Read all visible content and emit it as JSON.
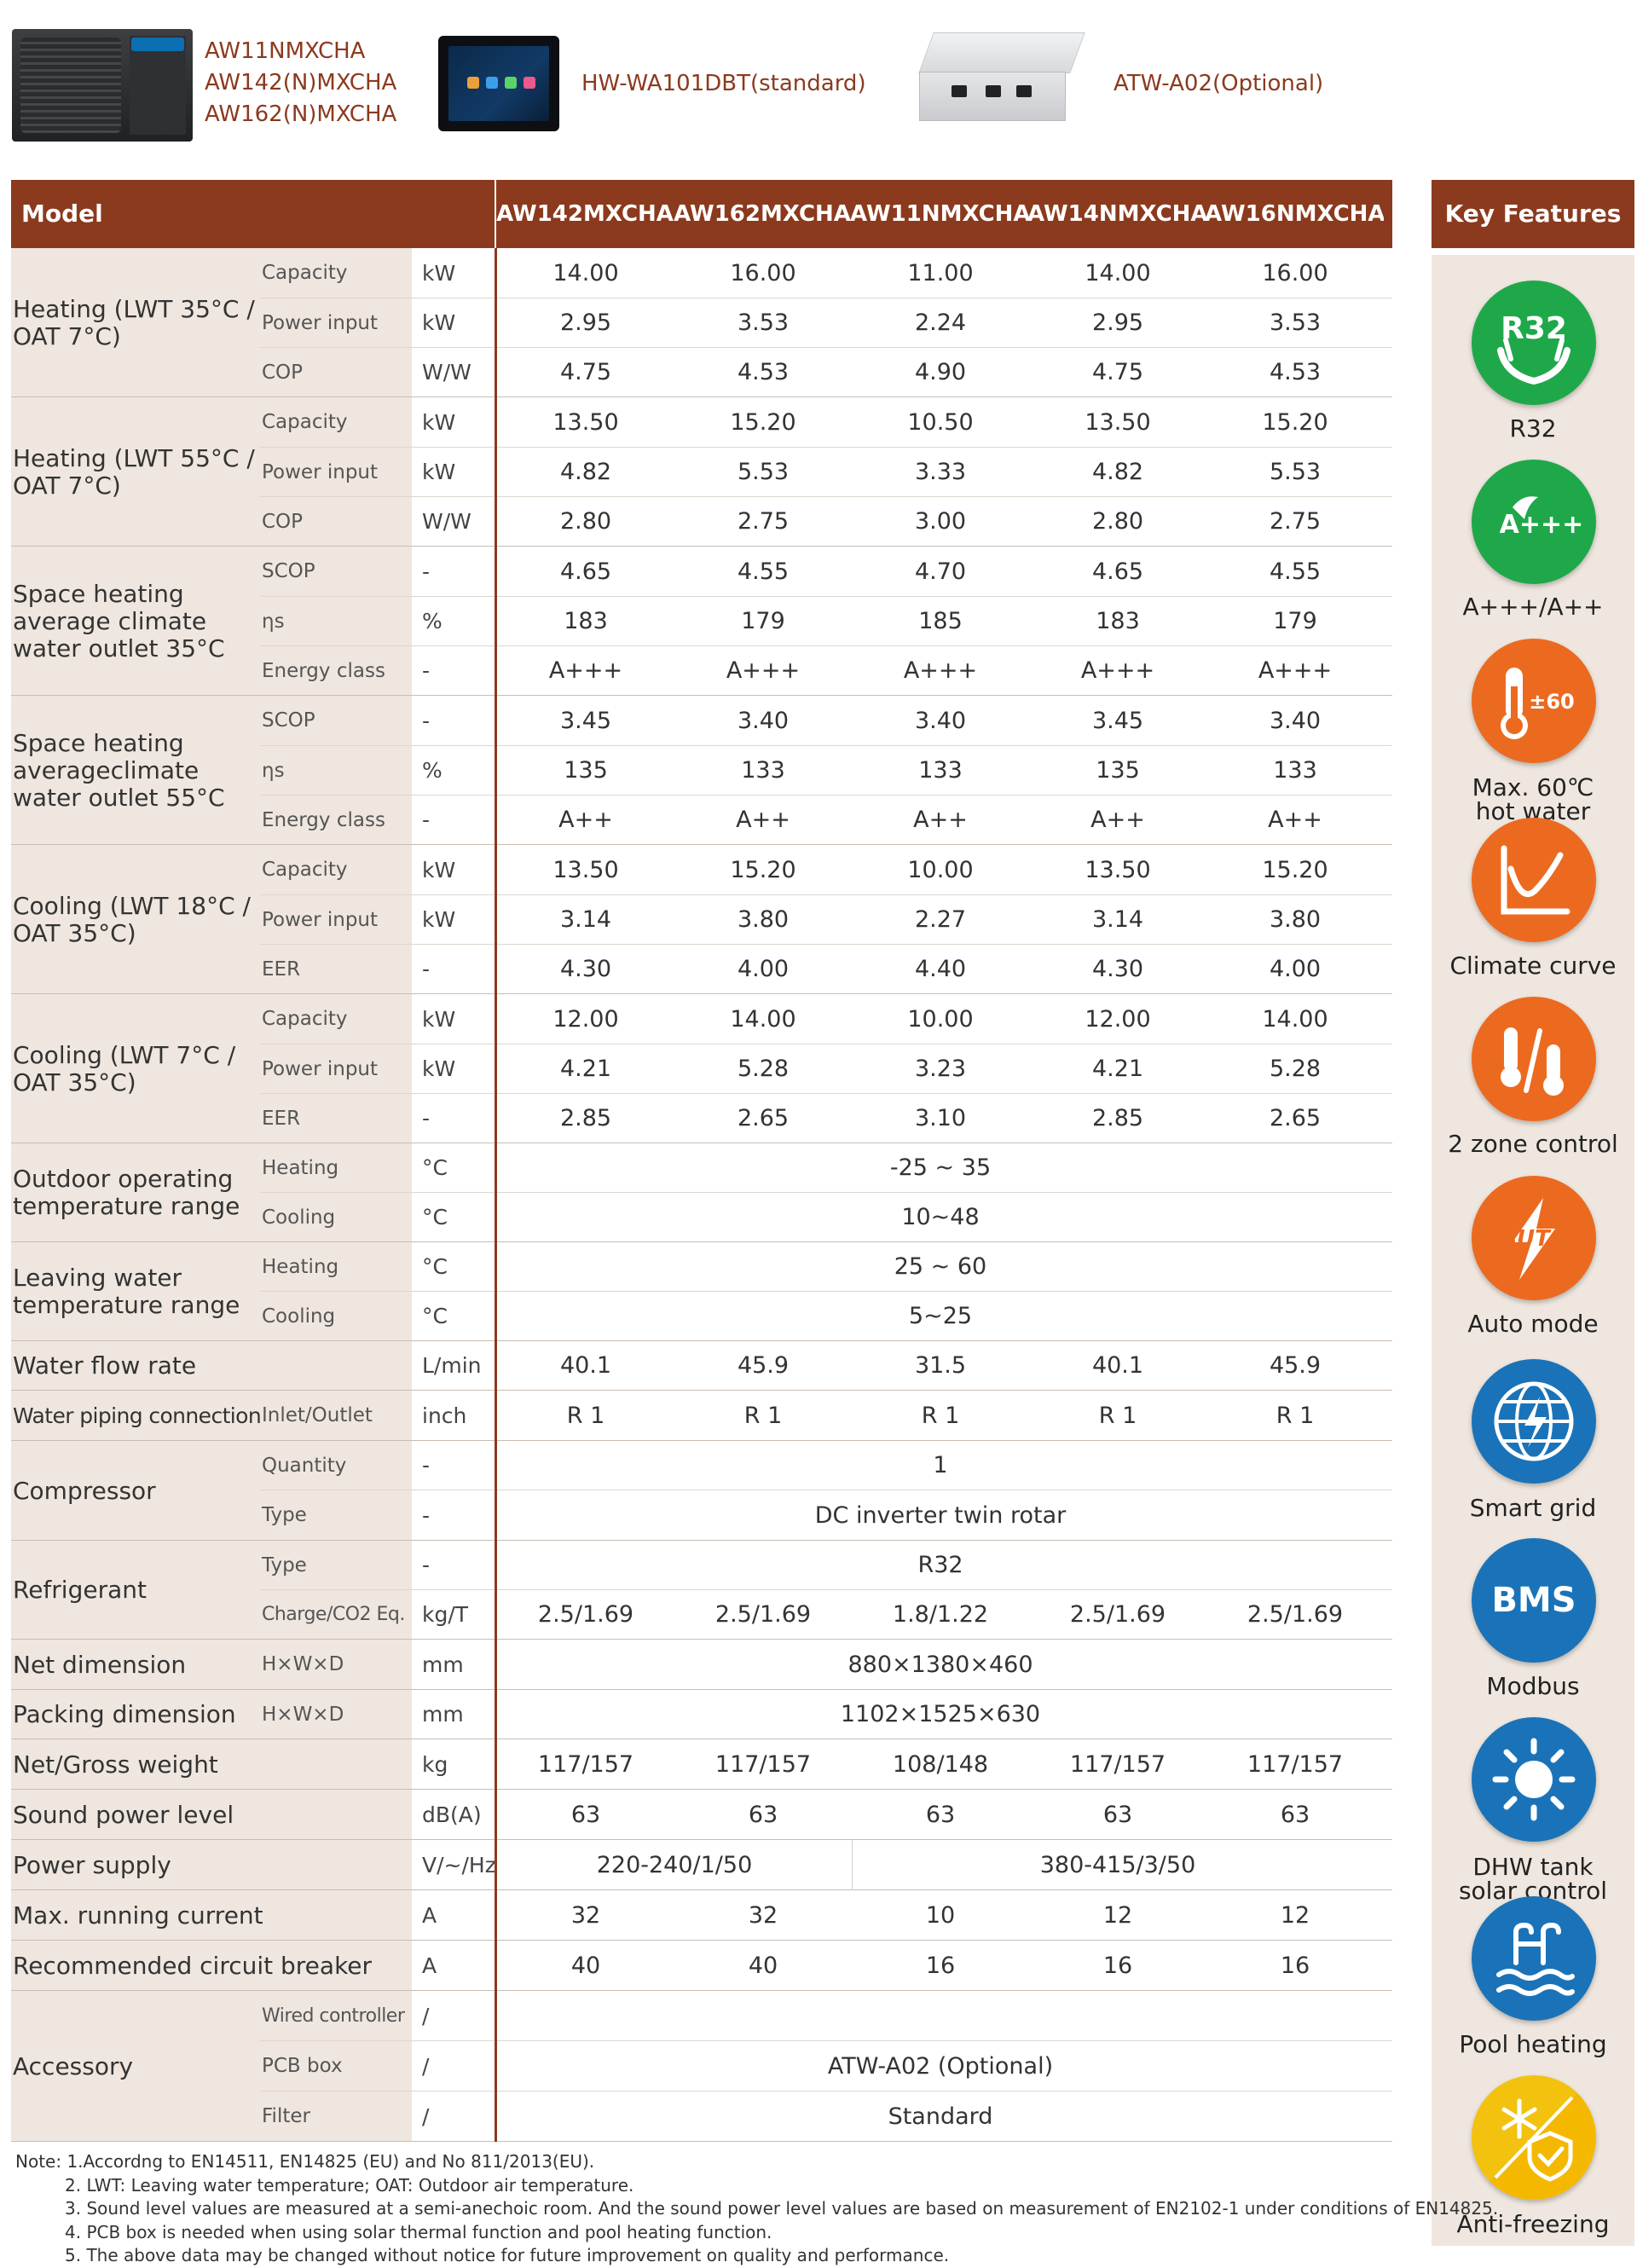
{
  "header": {
    "unit_models": [
      "AW11NMXCHA",
      "AW142(N)MXCHA",
      "AW162(N)MXCHA"
    ],
    "controller_label": "HW-WA101DBT(standard)",
    "box_label": "ATW-A02(Optional)"
  },
  "colors": {
    "accent": "#8b3a1e",
    "band": "#efe7df",
    "green": "#1fa84a",
    "orange": "#ec6a1f",
    "blue": "#1a73b8",
    "yellow": "#f2c20f"
  },
  "table": {
    "model_label": "Model",
    "models": [
      "AW142MXCHA",
      "AW162MXCHA",
      "AW11NMXCHA",
      "AW14NMXCHA",
      "AW16NMXCHA"
    ],
    "rows": [
      {
        "group": "Heating (LWT 35°C /\nOAT 7°C)",
        "sub": "Capacity",
        "unit": "kW",
        "values": [
          "14.00",
          "16.00",
          "11.00",
          "14.00",
          "16.00"
        ]
      },
      {
        "sub": "Power input",
        "unit": "kW",
        "values": [
          "2.95",
          "3.53",
          "2.24",
          "2.95",
          "3.53"
        ]
      },
      {
        "sub": "COP",
        "unit": "W/W",
        "values": [
          "4.75",
          "4.53",
          "4.90",
          "4.75",
          "4.53"
        ]
      },
      {
        "group": "Heating (LWT 55°C /\nOAT 7°C)",
        "sub": "Capacity",
        "unit": "kW",
        "values": [
          "13.50",
          "15.20",
          "10.50",
          "13.50",
          "15.20"
        ]
      },
      {
        "sub": "Power input",
        "unit": "kW",
        "values": [
          "4.82",
          "5.53",
          "3.33",
          "4.82",
          "5.53"
        ]
      },
      {
        "sub": "COP",
        "unit": "W/W",
        "values": [
          "2.80",
          "2.75",
          "3.00",
          "2.80",
          "2.75"
        ]
      },
      {
        "group": "Space heating\naverage climate\nwater outlet 35°C",
        "sub": "SCOP",
        "unit": "-",
        "values": [
          "4.65",
          "4.55",
          "4.70",
          "4.65",
          "4.55"
        ]
      },
      {
        "sub": "ηs",
        "unit": "%",
        "values": [
          "183",
          "179",
          "185",
          "183",
          "179"
        ]
      },
      {
        "sub": "Energy class",
        "unit": "-",
        "values": [
          "A+++",
          "A+++",
          "A+++",
          "A+++",
          "A+++"
        ]
      },
      {
        "group": "Space heating\naverageclimate\nwater outlet 55°C",
        "sub": "SCOP",
        "unit": "-",
        "values": [
          "3.45",
          "3.40",
          "3.40",
          "3.45",
          "3.40"
        ]
      },
      {
        "sub": "ηs",
        "unit": "%",
        "values": [
          "135",
          "133",
          "133",
          "135",
          "133"
        ]
      },
      {
        "sub": "Energy class",
        "unit": "-",
        "values": [
          "A++",
          "A++",
          "A++",
          "A++",
          "A++"
        ]
      },
      {
        "group": "Cooling (LWT 18°C /\nOAT 35°C)",
        "sub": "Capacity",
        "unit": "kW",
        "values": [
          "13.50",
          "15.20",
          "10.00",
          "13.50",
          "15.20"
        ]
      },
      {
        "sub": "Power input",
        "unit": "kW",
        "values": [
          "3.14",
          "3.80",
          "2.27",
          "3.14",
          "3.80"
        ]
      },
      {
        "sub": "EER",
        "unit": "-",
        "values": [
          "4.30",
          "4.00",
          "4.40",
          "4.30",
          "4.00"
        ]
      },
      {
        "group": "Cooling (LWT 7°C /\nOAT 35°C)",
        "sub": "Capacity",
        "unit": "kW",
        "values": [
          "12.00",
          "14.00",
          "10.00",
          "12.00",
          "14.00"
        ]
      },
      {
        "sub": "Power input",
        "unit": "kW",
        "values": [
          "4.21",
          "5.28",
          "3.23",
          "4.21",
          "5.28"
        ]
      },
      {
        "sub": "EER",
        "unit": "-",
        "values": [
          "2.85",
          "2.65",
          "3.10",
          "2.85",
          "2.65"
        ]
      },
      {
        "group": "Outdoor operating\ntemperature range",
        "sub": "Heating",
        "unit": "°C",
        "span": "-25 ~ 35"
      },
      {
        "sub": "Cooling",
        "unit": "°C",
        "span": "10~48"
      },
      {
        "group": "Leaving water\ntemperature range",
        "sub": "Heating",
        "unit": "°C",
        "span": "25 ~ 60"
      },
      {
        "sub": "Cooling",
        "unit": "°C",
        "span": "5~25"
      },
      {
        "label": "Water flow rate",
        "unit": "L/min",
        "values": [
          "40.1",
          "45.9",
          "31.5",
          "40.1",
          "45.9"
        ]
      },
      {
        "label": "Water piping connection",
        "sub": "Inlet/Outlet",
        "unit": "inch",
        "values": [
          "R 1",
          "R 1",
          "R 1",
          "R 1",
          "R 1"
        ]
      },
      {
        "group": "Compressor",
        "sub": "Quantity",
        "unit": "-",
        "span": "1"
      },
      {
        "sub": "Type",
        "unit": "-",
        "span": "DC inverter twin rotar"
      },
      {
        "group": "Refrigerant",
        "sub": "Type",
        "unit": "-",
        "span": "R32"
      },
      {
        "sub": "Charge/CO2 Eq.",
        "unit": "kg/T",
        "values": [
          "2.5/1.69",
          "2.5/1.69",
          "1.8/1.22",
          "2.5/1.69",
          "2.5/1.69"
        ]
      },
      {
        "label": "Net dimension",
        "sub": "H×W×D",
        "unit": "mm",
        "span": "880×1380×460"
      },
      {
        "label": "Packing dimension",
        "sub": "H×W×D",
        "unit": "mm",
        "span": "1102×1525×630"
      },
      {
        "label": "Net/Gross weight",
        "unit": "kg",
        "values": [
          "117/157",
          "117/157",
          "108/148",
          "117/157",
          "117/157"
        ]
      },
      {
        "label": "Sound power level",
        "unit": "dB(A)",
        "values": [
          "63",
          "63",
          "63",
          "63",
          "63"
        ]
      },
      {
        "label": "Power supply",
        "unit": "V/~/Hz",
        "split": [
          "220-240/1/50",
          "380-415/3/50"
        ]
      },
      {
        "label": "Max. running current",
        "unit": "A",
        "values": [
          "32",
          "32",
          "10",
          "12",
          "12"
        ]
      },
      {
        "label": "Recommended circuit breaker",
        "unit": "A",
        "values": [
          "40",
          "40",
          "16",
          "16",
          "16"
        ]
      },
      {
        "group": "Accessory",
        "sub": "Wired controller",
        "unit": "/",
        "span": ""
      },
      {
        "sub": "PCB box",
        "unit": "/",
        "span": "ATW-A02 (Optional)"
      },
      {
        "sub": "Filter",
        "unit": "/",
        "span": "Standard"
      }
    ]
  },
  "key_features": {
    "title": "Key Features",
    "items": [
      {
        "label": "R32",
        "icon": "r32-hands-icon",
        "color": "#1fa84a"
      },
      {
        "label": "A+++/A++",
        "icon": "energy-class-icon",
        "color": "#1fa84a"
      },
      {
        "label": "Max. 60℃\nhot water",
        "icon": "thermometer-60-icon",
        "color": "#ec6a1f"
      },
      {
        "label": "Climate curve",
        "icon": "curve-chart-icon",
        "color": "#ec6a1f"
      },
      {
        "label": "2 zone control",
        "icon": "dual-thermometer-icon",
        "color": "#ec6a1f"
      },
      {
        "label": "Auto mode",
        "icon": "auto-lightning-icon",
        "color": "#ec6a1f"
      },
      {
        "label": "Smart grid",
        "icon": "globe-lightning-icon",
        "color": "#1a73b8"
      },
      {
        "label": "Modbus",
        "icon": "bms-icon",
        "color": "#1a73b8"
      },
      {
        "label": "DHW tank\nsolar control",
        "icon": "sun-icon",
        "color": "#1a73b8"
      },
      {
        "label": "Pool heating",
        "icon": "pool-icon",
        "color": "#1a73b8"
      },
      {
        "label": "Anti-freezing",
        "icon": "snowflake-shield-icon",
        "color": "#f2c20f"
      }
    ]
  },
  "notes": [
    "Note: 1.Accordng to  EN14511, EN14825 (EU) and No 811/2013(EU).",
    "2. LWT: Leaving water temperature; OAT: Outdoor air temperature.",
    "3. Sound level values are measured at a semi-anechoic room. And the sound power level  values are based on measurement of EN2102-1 under conditions of EN14825.",
    "4. PCB box is needed when using solar thermal function and pool heating function.",
    "5. The above data may be changed without notice for future improvement on quality and performance."
  ]
}
